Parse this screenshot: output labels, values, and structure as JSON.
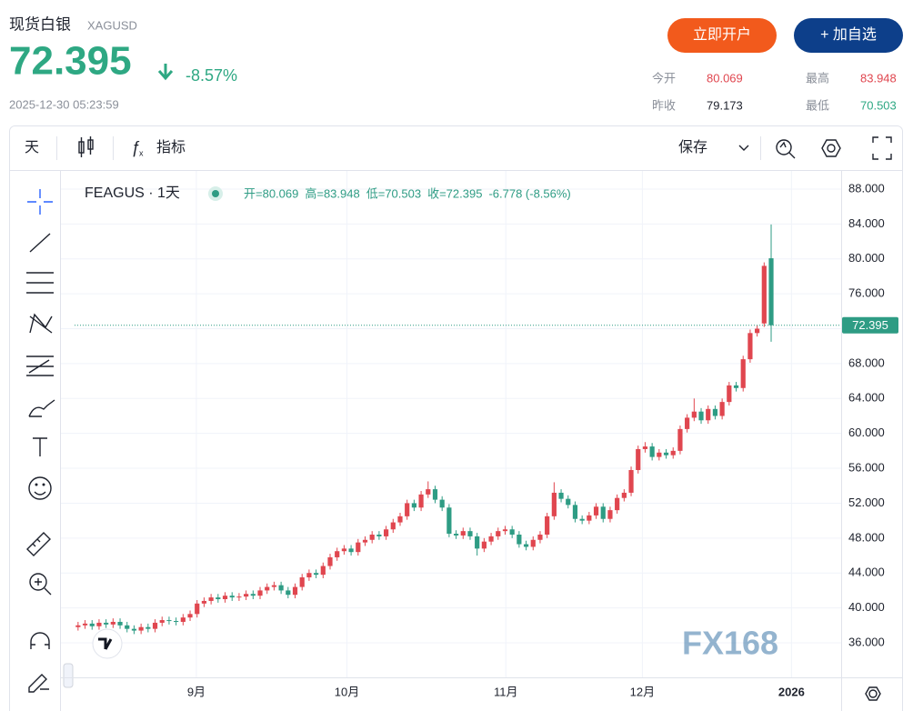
{
  "header": {
    "name": "现货白银",
    "symbol": "XAGUSD",
    "price": "72.395",
    "change": "-8.57%",
    "time": "2025-12-30 05:23:59",
    "buttons": [
      "立即开户",
      "+ 加自选"
    ]
  },
  "stats": [
    {
      "label": "今开",
      "value": "80.069"
    },
    {
      "label": "最高",
      "value": "83.948"
    },
    {
      "label": "昨收",
      "value": "79.173"
    },
    {
      "label": "最低",
      "value": "70.503"
    }
  ],
  "toolbar": {
    "interval": "天",
    "indicators": "指标",
    "save": "保存"
  },
  "chart_data": {
    "type": "candlestick",
    "title": "FEAGUS · 1天",
    "legend": [
      "开=80.069",
      "高=83.948",
      "低=70.503",
      "收=72.395",
      "-6.778 (-8.56%)"
    ],
    "up_color": "#e0464f",
    "down_color": "#2e9c84",
    "xlim": [
      -0.5,
      109
    ],
    "ylim": [
      32.04,
      90.08
    ],
    "xticks": [
      {
        "value": 16.9,
        "label": "9月"
      },
      {
        "value": 38.4,
        "label": "10月"
      },
      {
        "value": 61.1,
        "label": "11月"
      },
      {
        "value": 80.6,
        "label": "12月"
      },
      {
        "value": 101.9,
        "label": "2026"
      }
    ],
    "yticks": [
      {
        "value": 36,
        "label": "36.000"
      },
      {
        "value": 40,
        "label": "40.000"
      },
      {
        "value": 44,
        "label": "44.000"
      },
      {
        "value": 48,
        "label": "48.000"
      },
      {
        "value": 52,
        "label": "52.000"
      },
      {
        "value": 56,
        "label": "56.000"
      },
      {
        "value": 60,
        "label": "60.000"
      },
      {
        "value": 64,
        "label": "64.000"
      },
      {
        "value": 68,
        "label": "68.000"
      },
      {
        "value": 72,
        "label": "72.000"
      },
      {
        "value": 76,
        "label": "76.000"
      },
      {
        "value": 80,
        "label": "80.000"
      },
      {
        "value": 84,
        "label": "84.000"
      },
      {
        "value": 88,
        "label": "88.000"
      }
    ],
    "grid": true,
    "open": [
      37.8,
      38.0,
      38.2,
      37.9,
      38.3,
      38.1,
      38.4,
      38.0,
      37.6,
      37.4,
      37.8,
      37.6,
      38.3,
      38.6,
      38.5,
      38.4,
      38.9,
      39.3,
      40.5,
      40.8,
      41.2,
      41.0,
      41.4,
      41.2,
      41.3,
      41.6,
      41.4,
      42.0,
      42.4,
      42.6,
      42.0,
      41.5,
      42.4,
      43.5,
      44.0,
      43.8,
      44.8,
      45.8,
      46.5,
      46.8,
      46.4,
      47.5,
      47.8,
      48.4,
      48.2,
      49.0,
      49.8,
      50.5,
      52.0,
      51.5,
      53.0,
      53.6,
      52.4,
      51.5,
      48.5,
      48.3,
      48.8,
      48.2,
      46.8,
      47.6,
      48.2,
      48.8,
      49.0,
      48.4,
      47.3,
      47.0,
      47.8,
      48.4,
      50.5,
      53.2,
      52.5,
      51.8,
      50.2,
      50.0,
      50.6,
      51.6,
      50.2,
      51.2,
      52.6,
      53.2,
      55.8,
      58.2,
      58.5,
      57.3,
      57.8,
      57.5,
      58.0,
      60.5,
      61.8,
      62.5,
      61.5,
      62.8,
      62.0,
      63.6,
      65.5,
      65.2,
      68.5,
      71.5,
      72.6,
      80.069
    ],
    "high": [
      38.4,
      38.6,
      38.6,
      38.7,
      38.7,
      38.8,
      38.8,
      38.4,
      38.0,
      38.2,
      38.2,
      38.7,
      39.0,
      39.0,
      38.9,
      39.3,
      39.7,
      40.9,
      41.2,
      41.6,
      41.6,
      41.8,
      41.8,
      41.7,
      42.0,
      42.0,
      42.4,
      42.8,
      43.0,
      43.0,
      42.4,
      42.8,
      43.9,
      44.4,
      44.4,
      45.2,
      46.2,
      46.9,
      47.2,
      47.2,
      47.9,
      48.2,
      48.8,
      48.8,
      49.4,
      50.2,
      50.9,
      52.4,
      52.4,
      53.4,
      54.5,
      54.0,
      52.8,
      51.9,
      48.9,
      49.2,
      49.2,
      48.6,
      48.0,
      48.6,
      49.2,
      49.4,
      49.4,
      48.8,
      47.7,
      48.2,
      48.8,
      50.9,
      54.4,
      53.6,
      52.9,
      52.2,
      50.6,
      51.0,
      52.0,
      52.0,
      51.6,
      53.0,
      53.6,
      56.2,
      58.6,
      59.0,
      58.9,
      58.2,
      58.2,
      58.4,
      60.9,
      62.2,
      64.0,
      62.9,
      63.2,
      63.2,
      64.0,
      65.9,
      65.9,
      68.9,
      71.9,
      72.4,
      79.6,
      83.948
    ],
    "low": [
      37.4,
      37.6,
      37.5,
      37.5,
      37.7,
      37.7,
      37.6,
      37.2,
      37.0,
      37.0,
      37.2,
      37.2,
      37.9,
      38.1,
      38.0,
      38.0,
      38.5,
      38.9,
      40.1,
      40.4,
      40.6,
      40.6,
      40.8,
      40.8,
      40.9,
      41.0,
      41.0,
      41.6,
      42.0,
      41.6,
      41.1,
      41.1,
      42.0,
      43.1,
      43.4,
      43.4,
      44.4,
      45.4,
      46.1,
      46.0,
      46.0,
      47.1,
      47.4,
      47.8,
      47.8,
      48.6,
      49.4,
      50.1,
      51.1,
      51.1,
      52.6,
      52.0,
      51.1,
      48.1,
      47.9,
      47.9,
      47.8,
      46.0,
      46.4,
      47.2,
      47.8,
      48.4,
      48.0,
      46.9,
      46.6,
      46.6,
      47.4,
      48.0,
      50.1,
      52.1,
      51.4,
      49.8,
      49.6,
      49.6,
      50.2,
      49.8,
      49.8,
      50.8,
      52.2,
      52.8,
      55.4,
      57.8,
      56.9,
      56.9,
      57.1,
      57.1,
      57.6,
      60.1,
      61.4,
      61.1,
      61.1,
      61.6,
      61.6,
      63.2,
      64.8,
      64.8,
      68.1,
      71.1,
      72.2,
      70.503
    ],
    "close": [
      38.0,
      38.2,
      37.9,
      38.3,
      38.1,
      38.4,
      38.0,
      37.6,
      37.4,
      37.8,
      37.6,
      38.3,
      38.6,
      38.5,
      38.4,
      38.9,
      39.3,
      40.5,
      40.8,
      41.2,
      41.0,
      41.4,
      41.2,
      41.3,
      41.6,
      41.4,
      42.0,
      42.4,
      42.6,
      42.0,
      41.5,
      42.4,
      43.5,
      44.0,
      43.8,
      44.8,
      45.8,
      46.5,
      46.8,
      46.4,
      47.5,
      47.8,
      48.4,
      48.2,
      49.0,
      49.8,
      50.5,
      52.0,
      51.5,
      53.0,
      53.6,
      52.4,
      51.5,
      48.5,
      48.3,
      48.8,
      48.2,
      46.8,
      47.6,
      48.2,
      48.8,
      49.0,
      48.4,
      47.3,
      47.0,
      47.8,
      48.4,
      50.5,
      53.2,
      52.5,
      51.8,
      50.2,
      50.0,
      50.6,
      51.6,
      50.2,
      51.2,
      52.6,
      53.2,
      55.8,
      58.2,
      58.5,
      57.3,
      57.8,
      57.5,
      58.0,
      60.5,
      61.8,
      62.5,
      61.5,
      62.8,
      62.0,
      63.6,
      65.5,
      65.2,
      68.5,
      71.5,
      72.0,
      79.2,
      72.395
    ]
  }
}
